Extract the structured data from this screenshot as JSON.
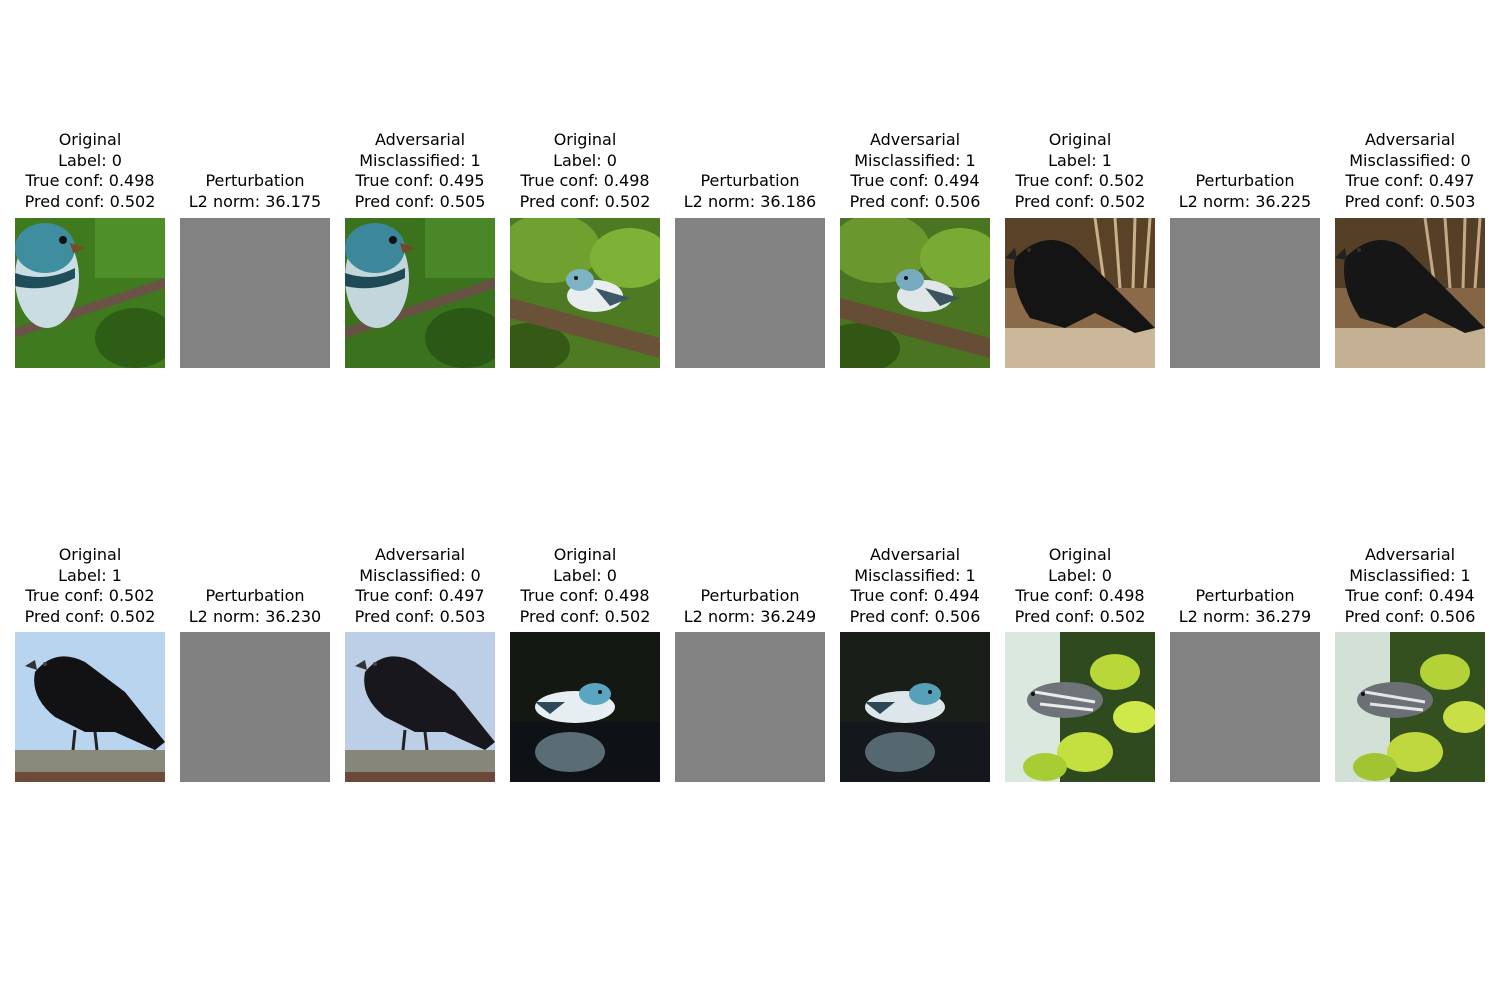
{
  "rows": [
    {
      "groups": [
        {
          "original": {
            "title": "Original",
            "label_line": "Label: 0",
            "true_conf": "True conf: 0.498",
            "pred_conf": "Pred conf: 0.502",
            "image": "blue-bird-on-branch-green-background"
          },
          "perturbation": {
            "title": "Perturbation",
            "l2": "L2 norm: 36.175",
            "image": "gray-noise"
          },
          "adversarial": {
            "title": "Adversarial",
            "label_line": "Misclassified: 1",
            "true_conf": "True conf: 0.495",
            "pred_conf": "Pred conf: 0.505",
            "image": "blue-bird-on-branch-green-background-noisy"
          }
        },
        {
          "original": {
            "title": "Original",
            "label_line": "Label: 0",
            "true_conf": "True conf: 0.498",
            "pred_conf": "Pred conf: 0.502",
            "image": "warbler-on-branch-leaves"
          },
          "perturbation": {
            "title": "Perturbation",
            "l2": "L2 norm: 36.186",
            "image": "gray-noise"
          },
          "adversarial": {
            "title": "Adversarial",
            "label_line": "Misclassified: 1",
            "true_conf": "True conf: 0.494",
            "pred_conf": "Pred conf: 0.506",
            "image": "warbler-on-branch-leaves-noisy"
          }
        },
        {
          "original": {
            "title": "Original",
            "label_line": "Label: 1",
            "true_conf": "True conf: 0.502",
            "pred_conf": "Pred conf: 0.502",
            "image": "crow-on-straw"
          },
          "perturbation": {
            "title": "Perturbation",
            "l2": "L2 norm: 36.225",
            "image": "gray-noise"
          },
          "adversarial": {
            "title": "Adversarial",
            "label_line": "Misclassified: 0",
            "true_conf": "True conf: 0.497",
            "pred_conf": "Pred conf: 0.503",
            "image": "crow-on-straw-noisy"
          }
        }
      ]
    },
    {
      "groups": [
        {
          "original": {
            "title": "Original",
            "label_line": "Label: 1",
            "true_conf": "True conf: 0.502",
            "pred_conf": "Pred conf: 0.502",
            "image": "crow-on-fence-blue-sky"
          },
          "perturbation": {
            "title": "Perturbation",
            "l2": "L2 norm: 36.230",
            "image": "gray-noise"
          },
          "adversarial": {
            "title": "Adversarial",
            "label_line": "Misclassified: 0",
            "true_conf": "True conf: 0.497",
            "pred_conf": "Pred conf: 0.503",
            "image": "crow-on-fence-blue-sky-noisy"
          }
        },
        {
          "original": {
            "title": "Original",
            "label_line": "Label: 0",
            "true_conf": "True conf: 0.498",
            "pred_conf": "Pred conf: 0.502",
            "image": "warbler-at-water-dark"
          },
          "perturbation": {
            "title": "Perturbation",
            "l2": "L2 norm: 36.249",
            "image": "gray-noise"
          },
          "adversarial": {
            "title": "Adversarial",
            "label_line": "Misclassified: 1",
            "true_conf": "True conf: 0.494",
            "pred_conf": "Pred conf: 0.506",
            "image": "warbler-at-water-dark-noisy"
          }
        },
        {
          "original": {
            "title": "Original",
            "label_line": "Label: 0",
            "true_conf": "True conf: 0.498",
            "pred_conf": "Pred conf: 0.502",
            "image": "warbler-in-bright-leaves"
          },
          "perturbation": {
            "title": "Perturbation",
            "l2": "L2 norm: 36.279",
            "image": "gray-noise"
          },
          "adversarial": {
            "title": "Adversarial",
            "label_line": "Misclassified: 1",
            "true_conf": "True conf: 0.494",
            "pred_conf": "Pred conf: 0.506",
            "image": "warbler-in-bright-leaves-noisy"
          }
        }
      ]
    }
  ]
}
